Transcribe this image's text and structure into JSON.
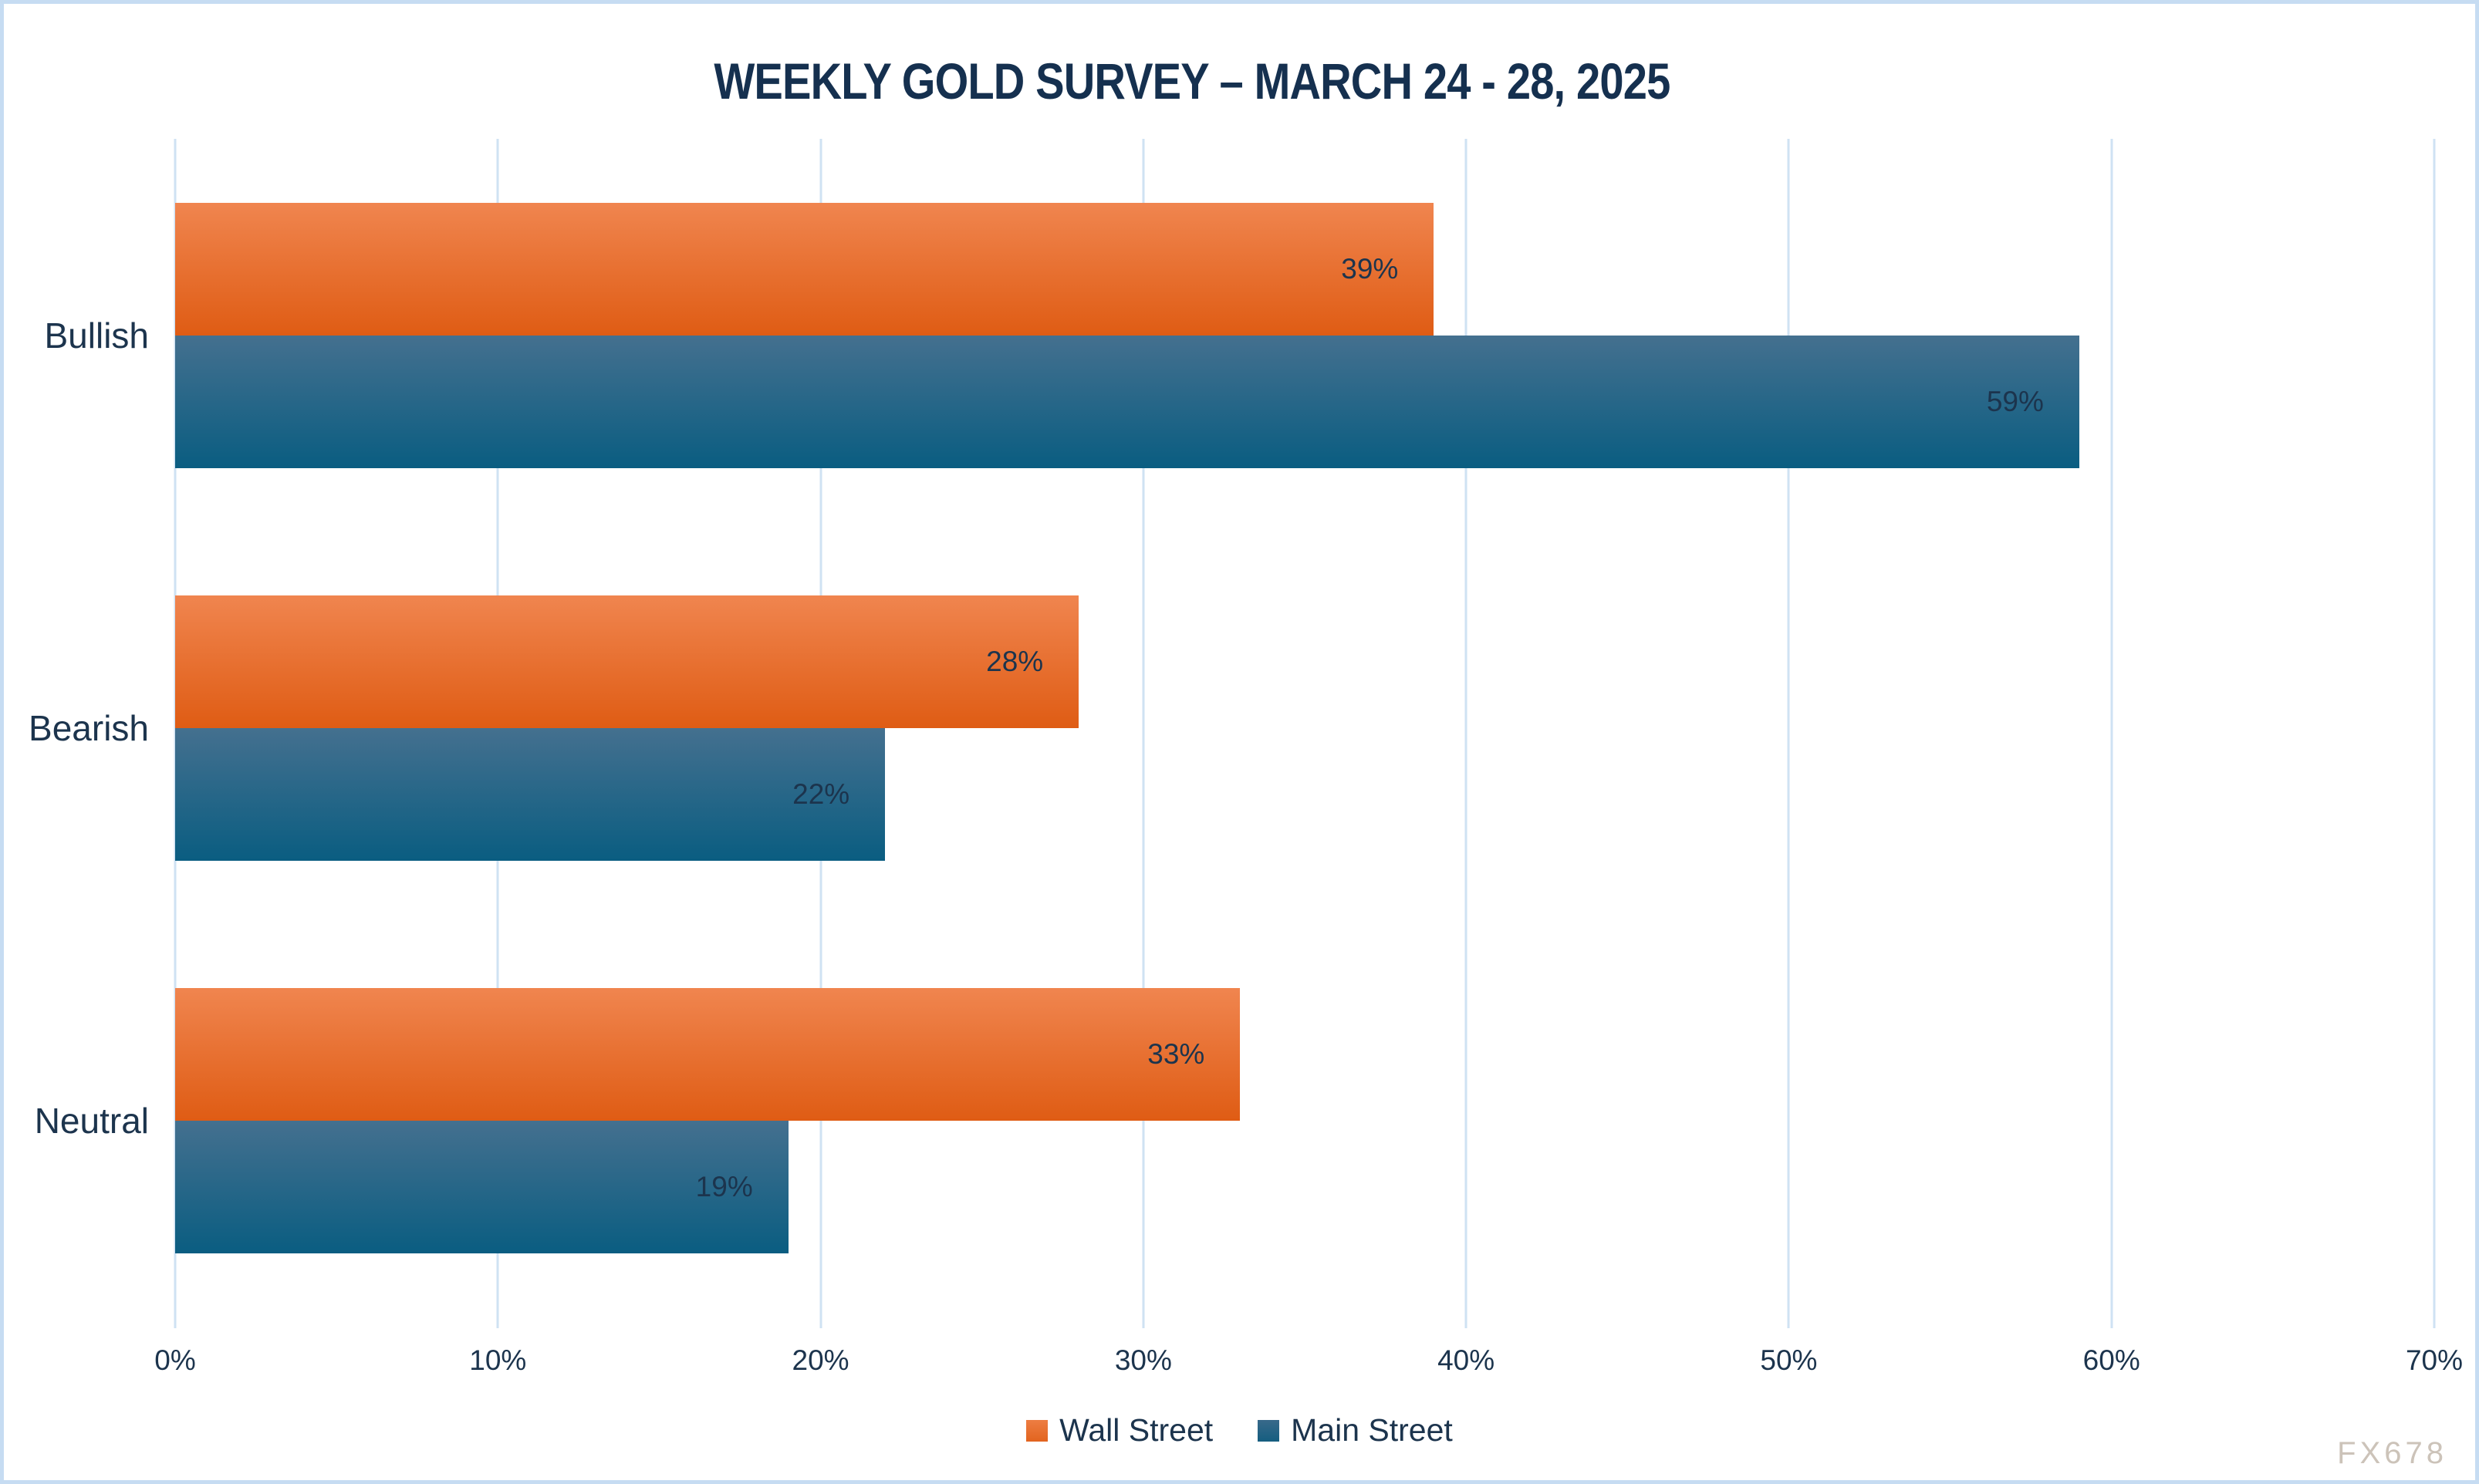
{
  "chart_data": {
    "type": "bar",
    "orientation": "horizontal",
    "title": "WEEKLY GOLD SURVEY – MARCH 24 - 28, 2025",
    "categories": [
      "Bullish",
      "Bearish",
      "Neutral"
    ],
    "series": [
      {
        "name": "Wall Street",
        "color_top": "#f0854f",
        "color_bottom": "#df5c14",
        "values": [
          39,
          28,
          33
        ]
      },
      {
        "name": "Main Street",
        "color_top": "#44708f",
        "color_bottom": "#0a5d81",
        "values": [
          59,
          22,
          19
        ]
      }
    ],
    "value_suffix": "%",
    "data_labels": [
      [
        "39%",
        "28%",
        "33%"
      ],
      [
        "59%",
        "22%",
        "19%"
      ]
    ],
    "xlim": [
      0,
      70
    ],
    "x_tick_step": 10,
    "x_tick_labels": [
      "0%",
      "10%",
      "20%",
      "30%",
      "40%",
      "50%",
      "60%",
      "70%"
    ],
    "grid": true,
    "legend_position": "bottom"
  },
  "watermark": "FX678",
  "colors": {
    "title_text": "#15304f",
    "axis_text": "#1c344d",
    "gridline": "#cfe2f3",
    "border": "#c6dcf2",
    "background": "#ffffff",
    "watermark_text": "#ccc3b9"
  }
}
